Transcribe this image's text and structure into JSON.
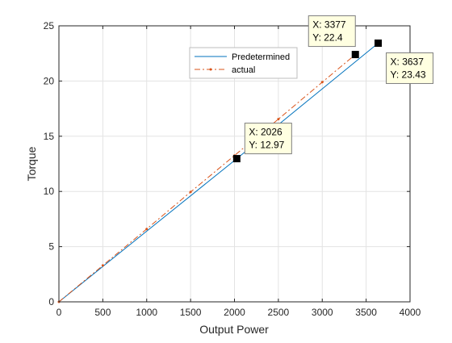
{
  "chart_data": {
    "type": "line",
    "title": "",
    "xlabel": "Output Power",
    "ylabel": "Torque",
    "xlim": [
      0,
      4000
    ],
    "ylim": [
      0,
      25
    ],
    "xticks": [
      0,
      500,
      1000,
      1500,
      2000,
      2500,
      3000,
      3500,
      4000
    ],
    "yticks": [
      0,
      5,
      10,
      15,
      20,
      25
    ],
    "grid": true,
    "legend_position": "top-center",
    "series": [
      {
        "name": "Predetermined",
        "color": "#0072BD",
        "style": "solid",
        "x": [
          0,
          2026,
          3637
        ],
        "y": [
          0,
          12.97,
          23.43
        ]
      },
      {
        "name": "actual",
        "color": "#D95319",
        "style": "dash-dot",
        "marker": "dot",
        "x": [
          0,
          500,
          1000,
          1500,
          2000,
          2500,
          3000,
          3377
        ],
        "y": [
          0,
          3.3,
          6.6,
          9.95,
          13.25,
          16.55,
          19.9,
          22.4
        ]
      }
    ],
    "datatips": [
      {
        "x_label": "X: 3377",
        "y_label": "Y: 22.4",
        "x": 3377,
        "y": 22.4
      },
      {
        "x_label": "X: 3637",
        "y_label": "Y: 23.43",
        "x": 3637,
        "y": 23.43
      },
      {
        "x_label": "X: 2026",
        "y_label": "Y: 12.97",
        "x": 2026,
        "y": 12.97
      }
    ]
  }
}
